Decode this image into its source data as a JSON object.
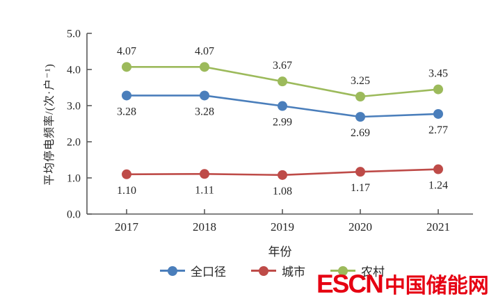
{
  "chart_data": {
    "type": "line",
    "categories": [
      "2017",
      "2018",
      "2019",
      "2020",
      "2021"
    ],
    "series": [
      {
        "name": "全口径",
        "color": "#4a7ebb",
        "values": [
          3.28,
          3.28,
          2.99,
          2.69,
          2.77
        ],
        "label_position": "below"
      },
      {
        "name": "城市",
        "color": "#be4b48",
        "values": [
          1.1,
          1.11,
          1.08,
          1.17,
          1.24
        ],
        "label_position": "below"
      },
      {
        "name": "农村",
        "color": "#9cba5b",
        "values": [
          4.07,
          4.07,
          3.67,
          3.25,
          3.45
        ],
        "label_position": "above"
      }
    ],
    "xlabel": "年份",
    "ylabel": "平均停电频率/(次·户⁻¹)",
    "ylim": [
      0,
      5
    ],
    "yticks": [
      0.0,
      1.0,
      2.0,
      3.0,
      4.0,
      5.0
    ],
    "grid": false,
    "legend_position": "bottom",
    "marker": "circle",
    "data_labels": true
  },
  "watermark": {
    "text_en": "ESCN",
    "text_zh": "中国储能网",
    "color": "#e60012"
  },
  "colors": {
    "axis": "#595959",
    "text": "#262626",
    "background": "#ffffff"
  }
}
